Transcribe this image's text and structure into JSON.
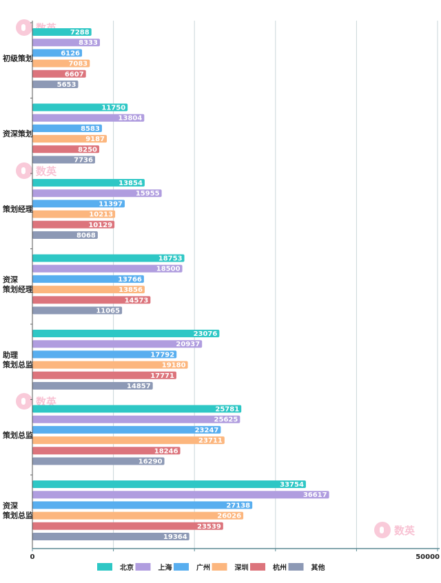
{
  "chart_data": {
    "type": "bar",
    "orientation": "horizontal",
    "title": "",
    "xlabel": "",
    "ylabel": "",
    "xlim": [
      0,
      50000
    ],
    "x_ticks": [
      0,
      10000,
      20000,
      30000,
      40000,
      50000
    ],
    "x_tick_labels": [
      "0",
      "",
      "",
      "",
      "",
      "50000"
    ],
    "grid": "vertical",
    "legend_position": "bottom",
    "categories": [
      [
        "初级策划"
      ],
      [
        "资深策划"
      ],
      [
        "策划经理"
      ],
      [
        "资深",
        "策划经理"
      ],
      [
        "助理",
        "策划总监"
      ],
      [
        "策划总监"
      ],
      [
        "资深",
        "策划总监"
      ]
    ],
    "series": [
      {
        "name": "北京",
        "color": "#2ec7c5",
        "values": [
          7288,
          11750,
          13854,
          18753,
          23076,
          25781,
          33754
        ]
      },
      {
        "name": "上海",
        "color": "#b09ddf",
        "values": [
          8333,
          13804,
          15955,
          18500,
          20937,
          25625,
          36617
        ]
      },
      {
        "name": "广州",
        "color": "#58aeef",
        "values": [
          6126,
          8583,
          11397,
          13766,
          17792,
          23247,
          27138
        ]
      },
      {
        "name": "深圳",
        "color": "#fcb67e",
        "values": [
          7083,
          9187,
          10213,
          13856,
          19180,
          23711,
          26026
        ]
      },
      {
        "name": "杭州",
        "color": "#dc747c",
        "values": [
          6607,
          8250,
          10129,
          14573,
          17771,
          18246,
          23539
        ]
      },
      {
        "name": "其他",
        "color": "#8d99b5",
        "values": [
          5653,
          7736,
          8068,
          11065,
          14857,
          16290,
          19364
        ]
      }
    ]
  },
  "watermark": {
    "text": "数英",
    "color": "#f7b8cc"
  }
}
